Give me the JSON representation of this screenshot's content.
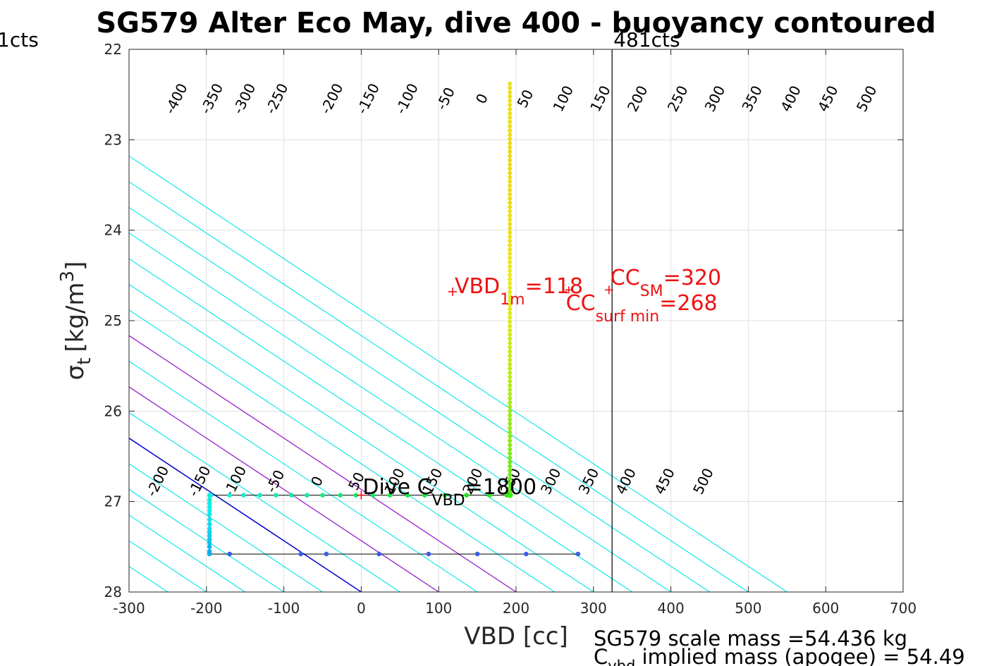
{
  "chart_data": {
    "type": "scatter",
    "title": "SG579 Alter Eco May, dive 400 - buoyancy contoured",
    "xlabel": "VBD [cc]",
    "ylabel_sym": "σ",
    "ylabel_sub": "t",
    "ylabel_unit": "[kg/m",
    "ylabel_sup": "3",
    "ylabel_close": "]",
    "xlim": [
      -300,
      700
    ],
    "ylim": [
      22,
      28
    ],
    "y_reversed": true,
    "grid": true,
    "xticks": [
      -300,
      -200,
      -100,
      0,
      100,
      200,
      300,
      400,
      500,
      600,
      700
    ],
    "yticks": [
      22,
      23,
      24,
      25,
      26,
      27,
      28
    ],
    "contours": {
      "slope_sigma_per_cc": 0.00567,
      "cyan_levels": [
        -450,
        -400,
        -350,
        -300,
        -250,
        -200,
        -150,
        -100,
        -50,
        50,
        100,
        150,
        200,
        250,
        300,
        350,
        400,
        450,
        500,
        550
      ],
      "zero_level": 0,
      "magenta_levels": [
        100,
        200
      ],
      "colors": {
        "cyan": "#00e5e5",
        "zero": "#0000cc",
        "magenta": "#aa22cc"
      }
    },
    "contour_labels_top": {
      "y": 22.55,
      "items": [
        {
          "text": "-400",
          "x": -238
        },
        {
          "text": "-350",
          "x": -192
        },
        {
          "text": "-300",
          "x": -150
        },
        {
          "text": "-250",
          "x": -108
        },
        {
          "text": "-200",
          "x": -37
        },
        {
          "text": "-150",
          "x": 10
        },
        {
          "text": "-100",
          "x": 60
        },
        {
          "text": "-50",
          "x": 110
        },
        {
          "text": "0",
          "x": 157
        },
        {
          "text": "50",
          "x": 213
        },
        {
          "text": "100",
          "x": 262
        },
        {
          "text": "150",
          "x": 310
        },
        {
          "text": "200",
          "x": 358
        },
        {
          "text": "250",
          "x": 410
        },
        {
          "text": "300",
          "x": 458
        },
        {
          "text": "350",
          "x": 506
        },
        {
          "text": "400",
          "x": 556
        },
        {
          "text": "450",
          "x": 604
        },
        {
          "text": "500",
          "x": 654
        }
      ]
    },
    "contour_labels_bottom": {
      "y": 26.78,
      "items": [
        {
          "text": "-200",
          "x": -262
        },
        {
          "text": "-150",
          "x": -208
        },
        {
          "text": "-100",
          "x": -162
        },
        {
          "text": "-50",
          "x": -110
        },
        {
          "text": "0",
          "x": -56
        },
        {
          "text": "50",
          "x": -5
        },
        {
          "text": "100",
          "x": 44
        },
        {
          "text": "150",
          "x": 93
        },
        {
          "text": "200",
          "x": 145
        },
        {
          "text": "250",
          "x": 194
        },
        {
          "text": "300",
          "x": 246
        },
        {
          "text": "350",
          "x": 295
        },
        {
          "text": "400",
          "x": 343
        },
        {
          "text": "450",
          "x": 393
        },
        {
          "text": "500",
          "x": 443
        }
      ]
    },
    "vertical_line": {
      "x": 324,
      "label": "481cts"
    },
    "left_top_label": "1cts",
    "series": {
      "descent_points": {
        "x": 192,
        "y_start": 22.38,
        "y_end": 26.93,
        "step": 0.047
      },
      "bottom_segment_y27": {
        "y": 26.93,
        "x": [
          193,
          188,
          166,
          136,
          108,
          82,
          60,
          37,
          15,
          -7,
          -27,
          -50,
          -70,
          -90,
          -110,
          -131,
          -152,
          -170,
          -194
        ],
        "hue_start": 0.3,
        "hue_end": 0.5
      },
      "left_vertical": {
        "x": -196,
        "y": [
          26.93,
          26.98,
          27.02,
          27.06,
          27.1,
          27.14,
          27.2,
          27.25,
          27.3,
          27.34,
          27.38,
          27.42,
          27.46,
          27.5,
          27.55,
          27.57
        ]
      },
      "bottom_segment_y276": {
        "y": 27.58,
        "x": [
          -196,
          -170,
          -78,
          -45,
          23,
          87,
          150,
          213,
          280
        ]
      }
    },
    "markers": [
      {
        "text": "VBD",
        "sub": "1m",
        "value": "=118",
        "x": 118,
        "y": 24.65,
        "marker_x": 118,
        "marker_y": 24.68
      },
      {
        "text": "CC",
        "sub": "SM",
        "value": "=320",
        "x": 320,
        "y": 24.63,
        "marker_x": 320,
        "marker_y": 24.66
      },
      {
        "text": "CC",
        "sub": "surf min",
        "value": "=268",
        "x": 268,
        "y": 24.66,
        "marker_x": 268,
        "marker_y": 24.66
      }
    ],
    "dive_marker": {
      "text": "Dive C",
      "sub": "VBD",
      "value": "=1800",
      "marker_x": 0,
      "marker_y": 26.93
    },
    "footer": {
      "scale_mass": "SG579 scale mass =54.436 kg",
      "cvbd_prefix": "C",
      "cvbd_sub": "vbd",
      "cvbd_rest": " implied mass (apogee) = 54.49"
    },
    "colors": {
      "annotation_red": "#ee1111",
      "axis": "#262626",
      "grid": "#dfdfdf",
      "track": "#000000"
    }
  }
}
